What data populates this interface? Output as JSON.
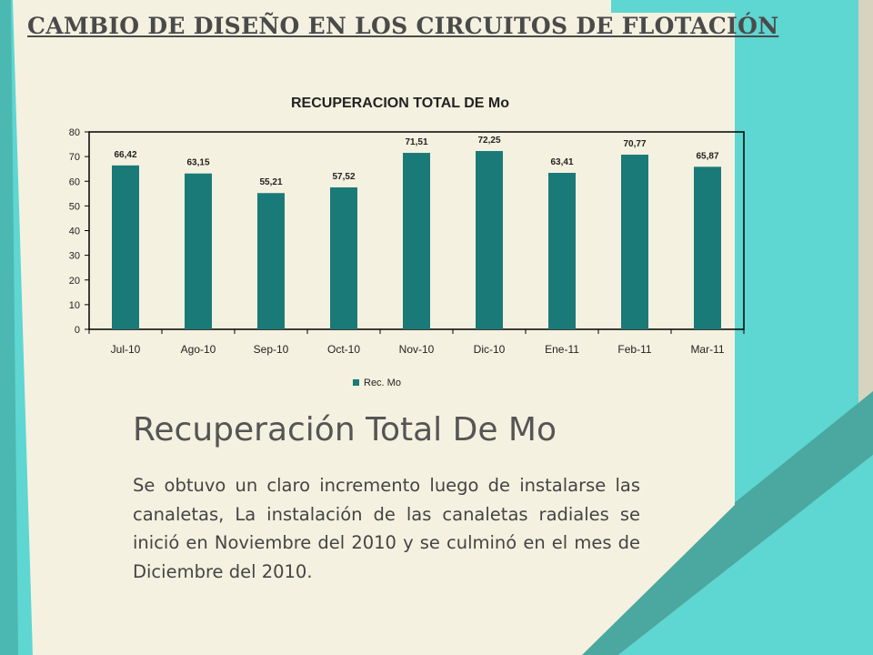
{
  "slide": {
    "heading": "CAMBIO DE DISEÑO EN LOS CIRCUITOS DE FLOTACIÓN",
    "subtitle": "Recuperación Total De Mo",
    "body": "Se obtuvo un claro incremento luego de instalarse las canaletas, La instalación de las canaletas radiales se inició en Noviembre del 2010 y se culminó en el mes de Diciembre del 2010."
  },
  "colors": {
    "teal": "#5ed6d2",
    "teal_dark": "#48a8a0",
    "bar": "#1a7a78",
    "cream": "#f5f1e0"
  },
  "chart_data": {
    "type": "bar",
    "title": "RECUPERACION TOTAL DE Mo",
    "categories": [
      "Jul-10",
      "Ago-10",
      "Sep-10",
      "Oct-10",
      "Nov-10",
      "Dic-10",
      "Ene-11",
      "Feb-11",
      "Mar-11"
    ],
    "series": [
      {
        "name": "Rec. Mo",
        "values": [
          66.42,
          63.15,
          55.21,
          57.52,
          71.51,
          72.25,
          63.41,
          70.77,
          65.87
        ],
        "labels": [
          "66,42",
          "63,15",
          "55,21",
          "57,52",
          "71,51",
          "72,25",
          "63,41",
          "70,77",
          "65,87"
        ]
      }
    ],
    "ylim": [
      0,
      80
    ],
    "yticks": [
      0,
      10,
      20,
      30,
      40,
      50,
      60,
      70,
      80
    ],
    "grid": false,
    "legend": "bottom",
    "xlabel": "",
    "ylabel": ""
  }
}
